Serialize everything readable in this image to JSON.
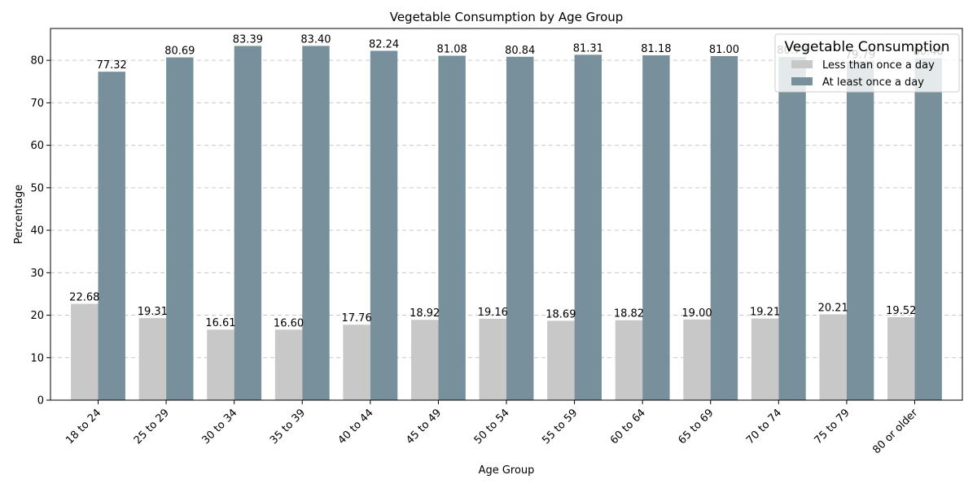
{
  "chart_data": {
    "type": "bar",
    "title": "Vegetable Consumption by Age Group",
    "xlabel": "Age Group",
    "ylabel": "Percentage",
    "ylim": [
      0,
      87.5
    ],
    "yticks": [
      0,
      10,
      20,
      30,
      40,
      50,
      60,
      70,
      80
    ],
    "grid": "y-dashed",
    "legend": {
      "title": "Vegetable Consumption",
      "placement": "top-right"
    },
    "categories": [
      "18 to 24",
      "25 to 29",
      "30 to 34",
      "35 to 39",
      "40 to 44",
      "45 to 49",
      "50 to 54",
      "55 to 59",
      "60 to 64",
      "65 to 69",
      "70 to 74",
      "75 to 79",
      "80 or older"
    ],
    "series": [
      {
        "name": "Less than once a day",
        "color": "#c8c8c8",
        "values": [
          22.68,
          19.31,
          16.61,
          16.6,
          17.76,
          18.92,
          19.16,
          18.69,
          18.82,
          19.0,
          19.21,
          20.21,
          19.52
        ],
        "labels": [
          "22.68",
          "19.31",
          "16.61",
          "16.60",
          "17.76",
          "18.92",
          "19.16",
          "18.69",
          "18.82",
          "19.00",
          "19.21",
          "20.21",
          "19.52"
        ]
      },
      {
        "name": "At least once a day",
        "color": "#78909c",
        "values": [
          77.32,
          80.69,
          83.39,
          83.4,
          82.24,
          81.08,
          80.84,
          81.31,
          81.18,
          81.0,
          80.79,
          79.79,
          80.48
        ],
        "labels": [
          "77.32",
          "80.69",
          "83.39",
          "83.40",
          "82.24",
          "81.08",
          "80.84",
          "81.31",
          "81.18",
          "81.00",
          "80.79",
          "79.79",
          "80.48"
        ]
      }
    ]
  }
}
